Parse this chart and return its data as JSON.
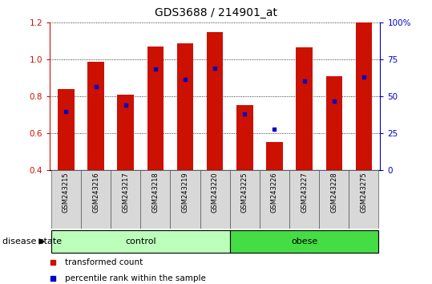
{
  "title": "GDS3688 / 214901_at",
  "samples": [
    "GSM243215",
    "GSM243216",
    "GSM243217",
    "GSM243218",
    "GSM243219",
    "GSM243220",
    "GSM243225",
    "GSM243226",
    "GSM243227",
    "GSM243228",
    "GSM243275"
  ],
  "bar_bottom": 0.4,
  "red_tops": [
    0.84,
    0.99,
    0.81,
    1.07,
    1.09,
    1.15,
    0.755,
    0.555,
    1.065,
    0.91,
    1.2
  ],
  "blue_y": [
    0.72,
    0.855,
    0.755,
    0.95,
    0.895,
    0.955,
    0.705,
    0.625,
    0.885,
    0.775,
    0.905
  ],
  "ylim_left": [
    0.4,
    1.2
  ],
  "ylim_right": [
    0,
    100
  ],
  "yticks_left": [
    0.4,
    0.6,
    0.8,
    1.0,
    1.2
  ],
  "yticks_right": [
    0,
    25,
    50,
    75,
    100
  ],
  "ytick_labels_right": [
    "0",
    "25",
    "50",
    "75",
    "100%"
  ],
  "control_count": 6,
  "obese_count": 5,
  "bar_color": "#cc1100",
  "blue_color": "#0000cc",
  "control_color": "#bbffbb",
  "obese_color": "#44dd44",
  "title_fontsize": 10,
  "tick_fontsize": 7.5,
  "sample_fontsize": 6,
  "legend_fontsize": 7.5,
  "disease_fontsize": 8,
  "group_fontsize": 8
}
